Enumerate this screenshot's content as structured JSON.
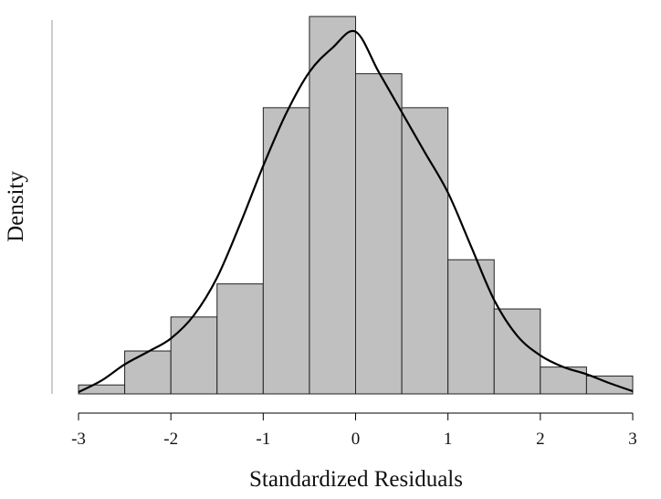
{
  "chart_data": {
    "type": "bar",
    "subtype": "histogram-with-density-curve",
    "title": "",
    "xlabel": "Standardized Residuals",
    "ylabel": "Density",
    "xlim": [
      -3,
      3
    ],
    "ylim": [
      0,
      0.42
    ],
    "x_ticks": [
      "-3",
      "-2",
      "-1",
      "0",
      "1",
      "2",
      "3"
    ],
    "y_ticks_shown": false,
    "grid": false,
    "bin_width": 0.5,
    "bins": [
      {
        "start": -3.0,
        "end": -2.5,
        "value": 0.01
      },
      {
        "start": -2.5,
        "end": -2.0,
        "value": 0.048
      },
      {
        "start": -2.0,
        "end": -1.5,
        "value": 0.086
      },
      {
        "start": -1.5,
        "end": -1.0,
        "value": 0.123
      },
      {
        "start": -1.0,
        "end": -0.5,
        "value": 0.32
      },
      {
        "start": -0.5,
        "end": 0.0,
        "value": 0.422
      },
      {
        "start": 0.0,
        "end": 0.5,
        "value": 0.358
      },
      {
        "start": 0.5,
        "end": 1.0,
        "value": 0.32
      },
      {
        "start": 1.0,
        "end": 1.5,
        "value": 0.15
      },
      {
        "start": 1.5,
        "end": 2.0,
        "value": 0.095
      },
      {
        "start": 2.0,
        "end": 2.5,
        "value": 0.03
      },
      {
        "start": 2.5,
        "end": 3.0,
        "value": 0.02
      }
    ],
    "density_curve": {
      "x": [
        -3.0,
        -2.75,
        -2.5,
        -2.25,
        -2.0,
        -1.75,
        -1.5,
        -1.25,
        -1.0,
        -0.75,
        -0.5,
        -0.25,
        0.0,
        0.25,
        0.5,
        0.75,
        1.0,
        1.25,
        1.5,
        1.75,
        2.0,
        2.25,
        2.5,
        2.75,
        3.0
      ],
      "y": [
        0.002,
        0.015,
        0.033,
        0.047,
        0.062,
        0.088,
        0.13,
        0.19,
        0.255,
        0.314,
        0.36,
        0.387,
        0.405,
        0.36,
        0.315,
        0.27,
        0.225,
        0.165,
        0.105,
        0.065,
        0.043,
        0.03,
        0.022,
        0.012,
        0.003
      ]
    },
    "colors": {
      "bar_fill": "#c0c0c0",
      "bar_stroke": "#222222",
      "curve": "#000000"
    }
  }
}
